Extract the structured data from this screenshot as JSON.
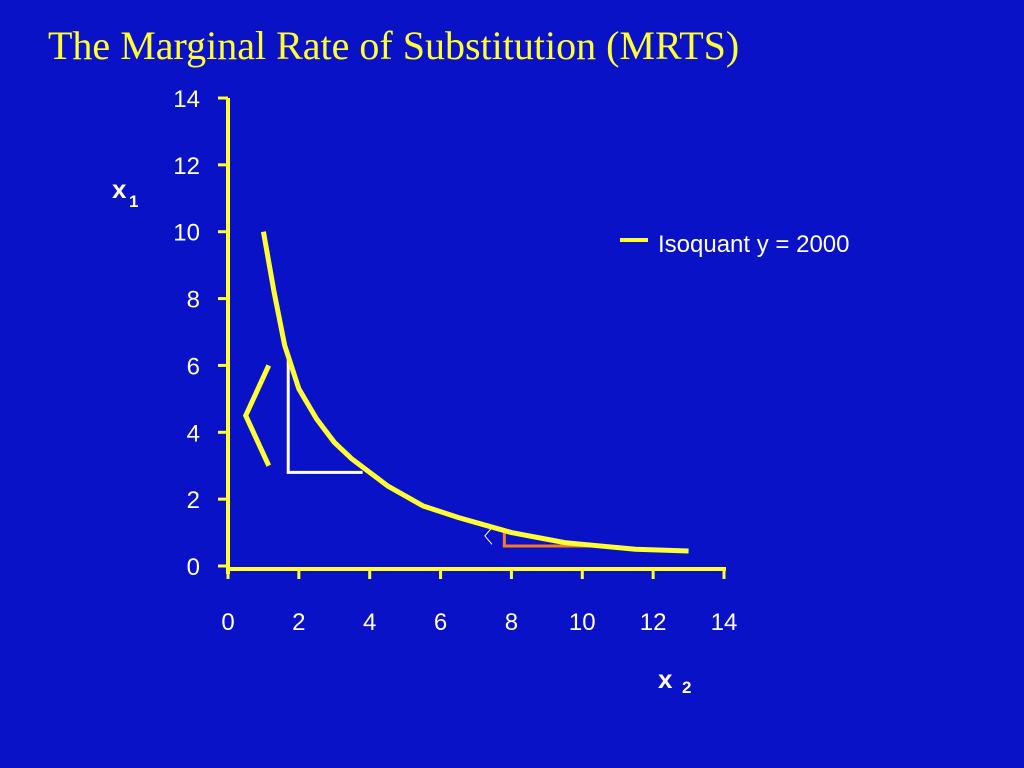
{
  "slide": {
    "title": "The Marginal Rate of Substitution (MRTS)"
  },
  "colors": {
    "background": "#0a12c8",
    "title": "#ffff33",
    "axis": "#ffff33",
    "curve": "#ffff33",
    "text": "#ffffff",
    "triangle_large": "#ffffff",
    "triangle_small": "#f07b2c"
  },
  "chart_data": {
    "type": "line",
    "title": "",
    "xlabel": {
      "main": "x",
      "sub": "2"
    },
    "ylabel": {
      "main": "x",
      "sub": "1"
    },
    "xlim": [
      0,
      14
    ],
    "ylim": [
      0,
      14
    ],
    "x_ticks": [
      0,
      2,
      4,
      6,
      8,
      10,
      12,
      14
    ],
    "y_ticks": [
      0,
      2,
      4,
      6,
      8,
      10,
      12,
      14
    ],
    "grid": false,
    "legend_position": "right",
    "series": [
      {
        "name": "Isoquant y = 2000",
        "x": [
          1.0,
          1.3,
          1.6,
          2.0,
          2.5,
          3.0,
          3.5,
          4.0,
          4.5,
          5.5,
          6.5,
          7.0,
          8.0,
          9.0,
          9.5,
          10.5,
          11.5,
          13.0
        ],
        "y": [
          10.0,
          8.2,
          6.6,
          5.3,
          4.4,
          3.7,
          3.2,
          2.8,
          2.4,
          1.8,
          1.45,
          1.3,
          1.0,
          0.8,
          0.7,
          0.6,
          0.5,
          0.45
        ]
      }
    ],
    "annotations": {
      "large_triangle": {
        "x1": 1.7,
        "x2": 3.8,
        "y_top": 6.3,
        "y_bottom": 2.8
      },
      "small_triangle": {
        "x1": 7.8,
        "x2": 10.8,
        "y_top": 1.0,
        "y_bottom": 0.6
      },
      "large_bracket": {
        "x_outer": 0.5,
        "x_inner": 1.15,
        "y_top": 6.0,
        "y_mid": 4.5,
        "y_bottom": 3.0
      },
      "small_bracket": {
        "x_outer": 7.25,
        "x_inner": 7.45,
        "y_top": 1.15,
        "y_mid": 0.9,
        "y_bottom": 0.65
      }
    }
  }
}
